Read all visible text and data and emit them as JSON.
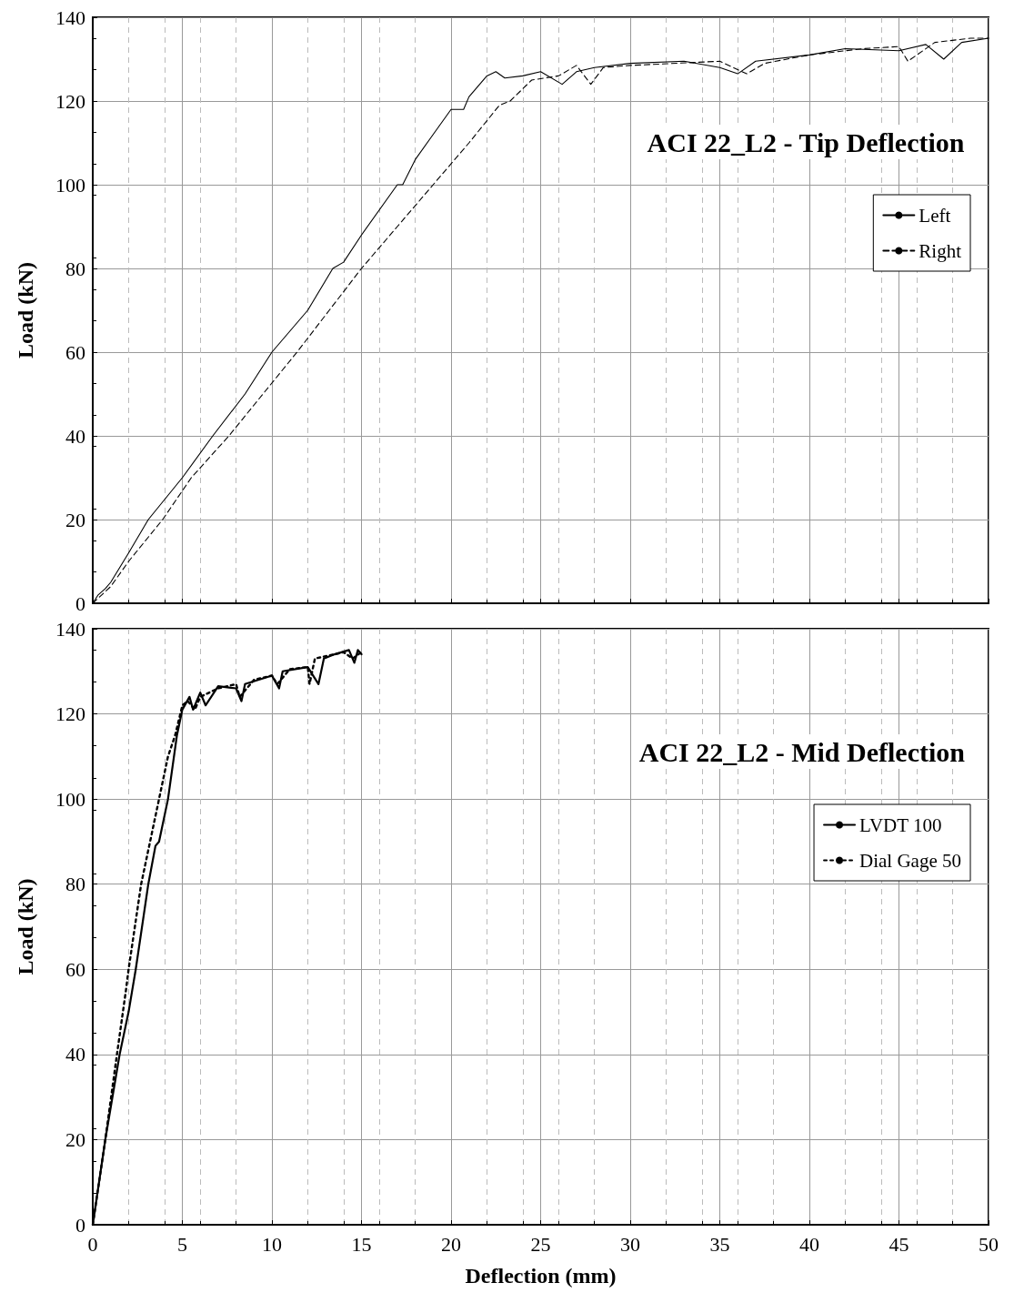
{
  "chart_data": [
    {
      "type": "line",
      "title": "ACI 22_L2 - Tip Deflection",
      "ylabel": "Load (kN)",
      "xlim": [
        0,
        50
      ],
      "xticks": [
        0,
        5,
        10,
        15,
        20,
        25,
        30,
        35,
        40,
        45,
        50
      ],
      "ylim": [
        0,
        140
      ],
      "yticks": [
        0,
        20,
        40,
        60,
        80,
        100,
        120,
        140
      ],
      "grid": true,
      "legend": "top right",
      "tick_labels": "y",
      "marker": "none",
      "series": [
        {
          "name": "Left",
          "color": "#000000",
          "line_style": "solid",
          "x": [
            0,
            0.3,
            0.7,
            1,
            2,
            3.1,
            5,
            6.7,
            8.5,
            10,
            12,
            13.4,
            14,
            15,
            17,
            17.3,
            18,
            19,
            20,
            20.7,
            21,
            22,
            22.5,
            23,
            24,
            25,
            26.2,
            27,
            28,
            30,
            33,
            35,
            36,
            37,
            40,
            42,
            45,
            46.5,
            47.5,
            48.5,
            50
          ],
          "values": [
            0,
            2,
            3.5,
            5,
            12,
            20,
            30,
            40,
            50,
            60,
            70,
            80,
            81.5,
            88,
            100,
            100,
            106,
            112,
            118,
            118,
            121,
            126,
            127,
            125.5,
            126,
            127,
            124,
            127,
            128,
            129,
            129.5,
            128,
            126.5,
            129.5,
            131,
            132.5,
            132,
            133.5,
            130,
            134,
            135
          ]
        },
        {
          "name": "Right",
          "color": "#000000",
          "line_style": "dashed",
          "x": [
            0,
            0.5,
            1,
            2,
            3.9,
            5.5,
            7.6,
            9.5,
            11.4,
            13.2,
            15,
            17,
            19,
            21,
            22.7,
            23.3,
            24.5,
            26,
            27,
            27.8,
            28.5,
            30,
            35,
            36.5,
            37.5,
            40,
            43,
            45,
            45.5,
            47,
            49,
            50
          ],
          "values": [
            0,
            2,
            4,
            10,
            20,
            30,
            40,
            50,
            60,
            70,
            80,
            90,
            100,
            110,
            119,
            120,
            125,
            126,
            128.5,
            124,
            128,
            128.5,
            129.5,
            126.5,
            129,
            131,
            132.5,
            133,
            129.5,
            134,
            135,
            135
          ]
        }
      ]
    },
    {
      "type": "line",
      "title": "ACI 22_L2 - Mid Deflection",
      "xlabel": "Deflection (mm)",
      "ylabel": "Load (kN)",
      "xlim": [
        0,
        50
      ],
      "xticks": [
        0,
        5,
        10,
        15,
        20,
        25,
        30,
        35,
        40,
        45,
        50
      ],
      "ylim": [
        0,
        140
      ],
      "yticks": [
        0,
        20,
        40,
        60,
        80,
        100,
        120,
        140
      ],
      "grid": true,
      "legend": "top right",
      "marker": "none",
      "series": [
        {
          "name": "LVDT 100",
          "color": "#000000",
          "line_style": "solid",
          "x": [
            0,
            0.7,
            1.5,
            2,
            2.2,
            2.4,
            3.1,
            3.5,
            3.7,
            4.2,
            4.7,
            5,
            5.4,
            5.6,
            6,
            6.3,
            7,
            8,
            8.3,
            8.5,
            10,
            10.4,
            10.6,
            12,
            12.6,
            12.9,
            13.5,
            14.3,
            14.6,
            14.8,
            15
          ],
          "values": [
            0,
            20,
            40,
            50,
            55,
            60,
            80,
            89,
            90,
            100,
            115,
            121,
            124,
            121,
            125,
            122,
            126.5,
            126,
            123,
            127,
            129,
            126,
            130,
            131,
            127,
            133,
            134,
            135,
            132,
            135,
            134
          ]
        },
        {
          "name": "Dial Gage 50",
          "color": "#000000",
          "line_style": "dotted",
          "x": [
            0,
            0.7,
            1.35,
            1.85,
            2,
            2.7,
            3.2,
            3.7,
            4.2,
            4.6,
            5,
            5.3,
            5.7,
            6,
            7,
            8,
            8.2,
            9,
            10,
            10.3,
            11,
            12,
            12.1,
            12.4,
            13.5,
            14,
            14.5,
            15
          ],
          "values": [
            0,
            20,
            40,
            55,
            60,
            80,
            90,
            100,
            110,
            115,
            122,
            123,
            121,
            124,
            126,
            127,
            124,
            128,
            129,
            127,
            130.5,
            131,
            127,
            133,
            134,
            134.5,
            133,
            134.5
          ]
        }
      ]
    }
  ]
}
